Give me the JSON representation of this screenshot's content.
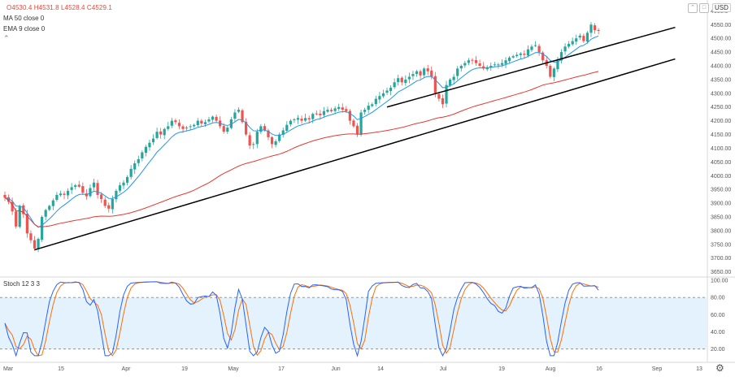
{
  "legend": {
    "ohlc": "O4530.4  H4531.8  L4528.4  C4529.1"
  },
  "indicators": [
    "MA 50 close 0",
    "EMA 9 close 0"
  ],
  "stoch_label": "Stoch 12 3 3",
  "currency": "USD",
  "icons": {
    "settings": "gear-icon",
    "collapse": "chevron-icon"
  },
  "colors": {
    "up": "#26a69a",
    "down": "#ef5350",
    "ema": "#2196f3",
    "ma": "#e53935",
    "stoch_k": "#2962ff",
    "stoch_d": "#ff6d00",
    "band": "#e3f2fd",
    "trend": "#000000"
  },
  "chart_data": {
    "type": "candlestick",
    "price_axis": {
      "range": [
        3640,
        4610
      ],
      "ticks": [
        3650,
        3700,
        3750,
        3800,
        3850,
        3900,
        3950,
        4000,
        4050,
        4100,
        4150,
        4200,
        4250,
        4300,
        4350,
        4400,
        4450,
        4500,
        4550,
        4600
      ],
      "tick_labels": [
        "3650.00",
        "3700.00",
        "3750.00",
        "3800.00",
        "3850.00",
        "3900.00",
        "3950.00",
        "4000.00",
        "4050.00",
        "4100.00",
        "4150.00",
        "4200.00",
        "4250.00",
        "4300.00",
        "4350.00",
        "4400.00",
        "4450.00",
        "4500.00",
        "4550.00",
        "4600.0"
      ]
    },
    "time_axis": {
      "labels": [
        "Mar",
        "15",
        "Apr",
        "19",
        "May",
        "17",
        "Jun",
        "14",
        "Jul",
        "19",
        "Aug",
        "16",
        "Sep",
        "13"
      ]
    },
    "closes": [
      3920,
      3905,
      3870,
      3815,
      3890,
      3860,
      3790,
      3765,
      3735,
      3770,
      3850,
      3875,
      3890,
      3910,
      3930,
      3935,
      3930,
      3945,
      3958,
      3965,
      3960,
      3938,
      3925,
      3955,
      3975,
      3930,
      3915,
      3890,
      3880,
      3915,
      3945,
      3965,
      3975,
      3995,
      4025,
      4045,
      4060,
      4085,
      4105,
      4120,
      4135,
      4160,
      4150,
      4170,
      4180,
      4200,
      4195,
      4180,
      4170,
      4175,
      4180,
      4185,
      4200,
      4190,
      4195,
      4205,
      4215,
      4200,
      4180,
      4160,
      4175,
      4205,
      4230,
      4240,
      4195,
      4150,
      4110,
      4115,
      4160,
      4180,
      4165,
      4140,
      4115,
      4125,
      4150,
      4165,
      4185,
      4200,
      4205,
      4210,
      4200,
      4210,
      4205,
      4225,
      4225,
      4220,
      4235,
      4240,
      4235,
      4245,
      4250,
      4240,
      4235,
      4200,
      4180,
      4150,
      4230,
      4240,
      4255,
      4260,
      4280,
      4290,
      4300,
      4310,
      4320,
      4340,
      4355,
      4340,
      4350,
      4360,
      4370,
      4380,
      4365,
      4390,
      4380,
      4360,
      4300,
      4280,
      4260,
      4330,
      4350,
      4360,
      4390,
      4400,
      4410,
      4420,
      4420,
      4410,
      4400,
      4390,
      4395,
      4400,
      4405,
      4405,
      4410,
      4420,
      4430,
      4435,
      4440,
      4445,
      4440,
      4460,
      4470,
      4475,
      4450,
      4420,
      4400,
      4360,
      4390,
      4420,
      4450,
      4470,
      4480,
      4490,
      4500,
      4510,
      4490,
      4520,
      4550,
      4530,
      4529
    ],
    "ema9": {
      "name": "EMA 9 close 0"
    },
    "ma50": {
      "name": "MA 50 close 0"
    },
    "trendlines": [
      {
        "from": [
          8,
          3730
        ],
        "to": [
          173,
          4420
        ]
      },
      {
        "from": [
          103,
          4250
        ],
        "to": [
          173,
          4535
        ]
      }
    ],
    "stochastic": {
      "name": "Stoch 12 3 3",
      "range": [
        10,
        102
      ],
      "ticks": [
        20,
        40,
        60,
        80,
        100
      ],
      "tick_labels": [
        "20.00",
        "40.00",
        "60.00",
        "80.00",
        "100.00"
      ],
      "band": [
        20,
        80
      ]
    }
  }
}
